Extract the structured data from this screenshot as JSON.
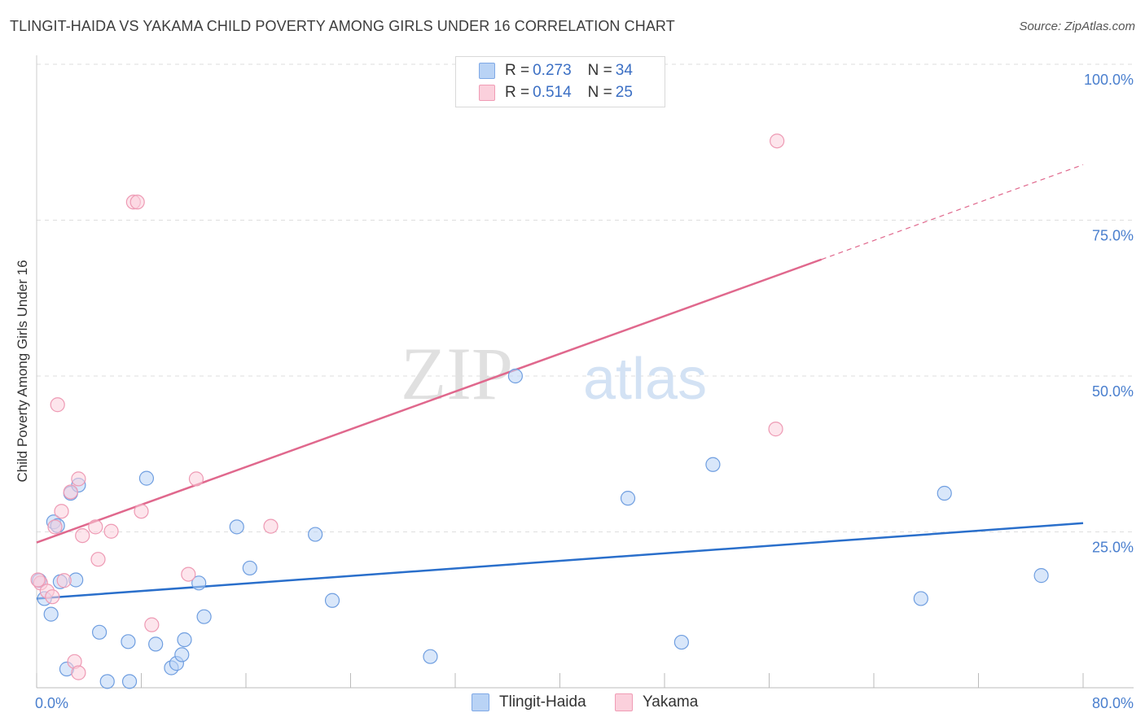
{
  "title": "TLINGIT-HAIDA VS YAKAMA CHILD POVERTY AMONG GIRLS UNDER 16 CORRELATION CHART",
  "source": "Source: ZipAtlas.com",
  "watermark": {
    "zip": "ZIP",
    "atlas": "atlas"
  },
  "legend": {
    "rows": [
      {
        "r_label": "R = ",
        "r_value": "0.273",
        "n_label": "N = ",
        "n_value": "34"
      },
      {
        "r_label": "R = ",
        "r_value": "0.514",
        "n_label": "N = ",
        "n_value": "25"
      }
    ]
  },
  "chart_data": {
    "type": "scatter",
    "title": "TLINGIT-HAIDA VS YAKAMA CHILD POVERTY AMONG GIRLS UNDER 16 CORRELATION CHART",
    "xlabel": "",
    "ylabel": "Child Poverty Among Girls Under 16",
    "xlim": [
      0,
      80
    ],
    "ylim": [
      0,
      100
    ],
    "x_tick_labels": [
      "0.0%",
      "80.0%"
    ],
    "y_tick_labels": [
      "25.0%",
      "50.0%",
      "75.0%",
      "100.0%"
    ],
    "y_ticks": [
      25,
      50,
      75,
      100
    ],
    "grid": true,
    "legend_position": "top-center",
    "colors": {
      "Tlingit-Haida": "#5b8fd8",
      "Yakama": "#f08aa8",
      "line_blue": "#2a6fcb",
      "line_pink": "#e0688d"
    },
    "series": [
      {
        "name": "Tlingit-Haida",
        "R": 0.273,
        "N": 34,
        "trend": {
          "x": [
            0,
            80
          ],
          "y": [
            14.3,
            26.4
          ]
        },
        "points": [
          [
            0.2,
            17.2
          ],
          [
            0.6,
            14.3
          ],
          [
            1.1,
            11.8
          ],
          [
            1.3,
            26.6
          ],
          [
            1.8,
            17.0
          ],
          [
            2.3,
            3.0
          ],
          [
            2.6,
            31.2
          ],
          [
            3.0,
            17.3
          ],
          [
            3.2,
            32.5
          ],
          [
            4.8,
            8.9
          ],
          [
            5.4,
            1.0
          ],
          [
            7.0,
            7.4
          ],
          [
            7.1,
            1.0
          ],
          [
            8.4,
            33.6
          ],
          [
            9.1,
            7.0
          ],
          [
            10.3,
            3.2
          ],
          [
            10.7,
            3.9
          ],
          [
            11.1,
            5.3
          ],
          [
            11.3,
            7.7
          ],
          [
            12.4,
            16.8
          ],
          [
            12.8,
            11.4
          ],
          [
            15.3,
            25.8
          ],
          [
            16.3,
            19.2
          ],
          [
            21.3,
            24.6
          ],
          [
            22.6,
            14.0
          ],
          [
            30.1,
            5.0
          ],
          [
            36.6,
            50.0
          ],
          [
            45.2,
            30.4
          ],
          [
            49.3,
            7.3
          ],
          [
            51.7,
            35.8
          ],
          [
            67.6,
            14.3
          ],
          [
            69.4,
            31.2
          ],
          [
            76.8,
            18.0
          ],
          [
            1.6,
            26.0
          ]
        ]
      },
      {
        "name": "Yakama",
        "R": 0.514,
        "N": 25,
        "trend": {
          "x": [
            0,
            60
          ],
          "y": [
            23.3,
            68.7
          ]
        },
        "trend_extension": {
          "x": [
            60,
            80
          ],
          "y": [
            68.7,
            83.9
          ]
        },
        "points": [
          [
            0.3,
            16.8
          ],
          [
            0.8,
            15.5
          ],
          [
            1.2,
            14.6
          ],
          [
            1.4,
            25.8
          ],
          [
            1.6,
            45.4
          ],
          [
            1.9,
            28.3
          ],
          [
            2.1,
            17.2
          ],
          [
            2.6,
            31.4
          ],
          [
            2.9,
            4.2
          ],
          [
            3.2,
            2.4
          ],
          [
            3.2,
            33.5
          ],
          [
            3.5,
            24.4
          ],
          [
            4.5,
            25.8
          ],
          [
            4.7,
            20.6
          ],
          [
            5.7,
            25.1
          ],
          [
            7.4,
            77.9
          ],
          [
            7.7,
            77.9
          ],
          [
            8.0,
            28.3
          ],
          [
            8.8,
            10.1
          ],
          [
            11.6,
            18.2
          ],
          [
            12.2,
            33.5
          ],
          [
            17.9,
            25.9
          ],
          [
            56.5,
            41.5
          ],
          [
            56.6,
            87.7
          ],
          [
            0.1,
            17.3
          ]
        ]
      }
    ]
  },
  "bottom_legend": [
    {
      "label": "Tlingit-Haida"
    },
    {
      "label": "Yakama"
    }
  ]
}
